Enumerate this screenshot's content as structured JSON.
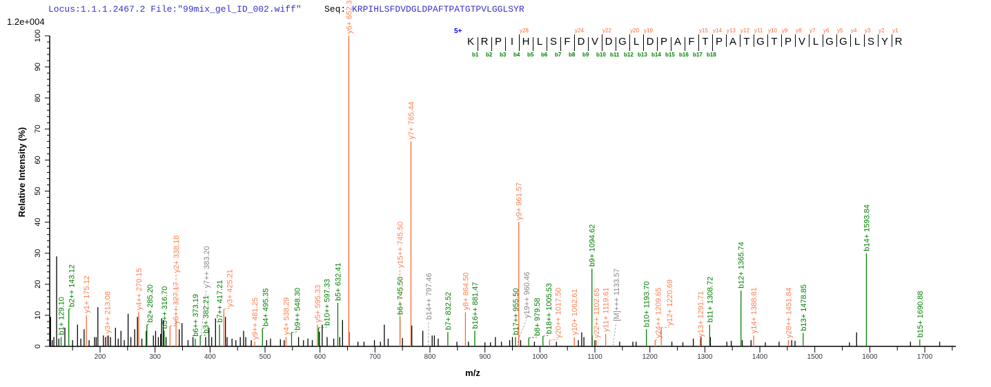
{
  "header": {
    "locus": "Locus:1.1.1.2467.2 File:\"99mix_gel_ID_002.wiff\"",
    "seq_label": "Seq:",
    "sequence": "KRPIHLSFDVDGLDPAFTPATGTPVLGGLSYR",
    "max_intensity": "1.2e+004",
    "charge": "5+"
  },
  "colors": {
    "b_ion": "#008000",
    "y_ion": "#ff6633",
    "y_label": "#ff7f50",
    "other": "#999999",
    "unassigned": "#000000",
    "header": "#3333cc"
  },
  "fragment_map": {
    "b_ions": [
      1,
      2,
      3,
      4,
      5,
      6,
      7,
      8,
      9,
      10,
      11,
      12,
      13,
      14,
      15,
      16,
      17,
      18
    ],
    "y_ions": [
      28,
      24,
      22,
      20,
      19,
      15,
      14,
      13,
      12,
      11,
      10,
      9,
      8,
      7,
      6,
      5,
      4,
      3,
      2,
      1
    ]
  },
  "chart_data": {
    "type": "bar",
    "title": "",
    "xlabel": "m/z",
    "ylabel": "Relative   Intensity (%)",
    "xlim": [
      108,
      1758
    ],
    "ylim": [
      0,
      100
    ],
    "xticks": [
      200,
      300,
      400,
      500,
      600,
      700,
      800,
      900,
      1000,
      1100,
      1200,
      1300,
      1400,
      1500,
      1600,
      1700
    ],
    "yticks": [
      0,
      10,
      20,
      30,
      40,
      50,
      60,
      70,
      80,
      90,
      100
    ],
    "grid": false,
    "annotated_peaks": [
      {
        "label": "b1+ 129.10",
        "mz": 129.1,
        "intensity": 3,
        "ion": "b"
      },
      {
        "label": "b2++ 143.12",
        "mz": 143.12,
        "intensity": 12,
        "ion": "b"
      },
      {
        "label": "y1+ 175.12",
        "mz": 175.12,
        "intensity": 10,
        "ion": "y"
      },
      {
        "label": "y3++ 213.08",
        "mz": 213.08,
        "intensity": 3.5,
        "ion": "y"
      },
      {
        "label": "y4++ 270.15",
        "mz": 270.15,
        "intensity": 11,
        "ion": "y"
      },
      {
        "label": "b2+ 285.20",
        "mz": 285.2,
        "intensity": 7,
        "ion": "b"
      },
      {
        "label": "b5++ 316.70",
        "mz": 316.7,
        "intensity": 5,
        "ion": "b"
      },
      {
        "label": "y6++ 327.17",
        "mz": 327.17,
        "intensity": 6.5,
        "ion": "y"
      },
      {
        "label": "y2+ 338.18",
        "mz": 338.18,
        "intensity": 8,
        "ion": "y"
      },
      {
        "label": "b6++ 373.19",
        "mz": 373.19,
        "intensity": 2.5,
        "ion": "b"
      },
      {
        "label": "b3+ 382.21",
        "mz": 382.21,
        "intensity": 3.5,
        "ion": "b"
      },
      {
        "label": "y7++ 383.20",
        "mz": 383.2,
        "intensity": 3,
        "ion": "o"
      },
      {
        "label": "b7++ 417.21",
        "mz": 417.21,
        "intensity": 7,
        "ion": "b"
      },
      {
        "label": "y3+ 425.21",
        "mz": 425.21,
        "intensity": 12,
        "ion": "y"
      },
      {
        "label": "y9++ 481.25",
        "mz": 481.25,
        "intensity": 1.5,
        "ion": "y"
      },
      {
        "label": "b4+ 495.35",
        "mz": 495.35,
        "intensity": 5.8,
        "ion": "b"
      },
      {
        "label": "y4+ 538.29",
        "mz": 538.29,
        "intensity": 3,
        "ion": "y"
      },
      {
        "label": "b9++ 548.30",
        "mz": 548.3,
        "intensity": 4.5,
        "ion": "b"
      },
      {
        "label": "y5+ 595.33",
        "mz": 595.33,
        "intensity": 7,
        "ion": "y"
      },
      {
        "label": "b10++ 597.33",
        "mz": 597.33,
        "intensity": 6,
        "ion": "b"
      },
      {
        "label": "b5+ 632.41",
        "mz": 632.41,
        "intensity": 14,
        "ion": "b"
      },
      {
        "label": "y6+ 652.35",
        "mz": 652.35,
        "intensity": 100,
        "ion": "y"
      },
      {
        "label": "b6+ 745.50",
        "mz": 745.5,
        "intensity": 9.5,
        "ion": "b"
      },
      {
        "label": "y15++ 745.50",
        "mz": 745.5,
        "intensity": 9.5,
        "ion": "y"
      },
      {
        "label": "y7+ 765.44",
        "mz": 765.44,
        "intensity": 66,
        "ion": "y"
      },
      {
        "label": "b14++ 797.46",
        "mz": 797.46,
        "intensity": 1.5,
        "ion": "o"
      },
      {
        "label": "b7+ 832.52",
        "mz": 832.52,
        "intensity": 4.6,
        "ion": "b"
      },
      {
        "label": "y8+ 864.50",
        "mz": 864.5,
        "intensity": 11,
        "ion": "y"
      },
      {
        "label": "b16++ 881.47",
        "mz": 881.47,
        "intensity": 5,
        "ion": "b"
      },
      {
        "label": "b17++ 955.50",
        "mz": 955.5,
        "intensity": 3,
        "ion": "b"
      },
      {
        "label": "y19++ 960.46",
        "mz": 960.46,
        "intensity": 2,
        "ion": "o"
      },
      {
        "label": "y9+ 961.57",
        "mz": 961.57,
        "intensity": 40,
        "ion": "y"
      },
      {
        "label": "b8+ 979.58",
        "mz": 979.58,
        "intensity": 2.7,
        "ion": "b"
      },
      {
        "label": "b18++ 1005.53",
        "mz": 1005.53,
        "intensity": 3.3,
        "ion": "b"
      },
      {
        "label": "y20++ 1017.50",
        "mz": 1017.5,
        "intensity": 2,
        "ion": "y"
      },
      {
        "label": "y10+ 1062.61",
        "mz": 1062.61,
        "intensity": 3,
        "ion": "y"
      },
      {
        "label": "b9+ 1094.62",
        "mz": 1094.62,
        "intensity": 25,
        "ion": "b"
      },
      {
        "label": "y22++ 1102.65",
        "mz": 1102.65,
        "intensity": 2,
        "ion": "y"
      },
      {
        "label": "y11+ 1119.61",
        "mz": 1119.61,
        "intensity": 4,
        "ion": "y"
      },
      {
        "label": "[M]+++ 1133.57",
        "mz": 1133.57,
        "intensity": 1,
        "ion": "o"
      },
      {
        "label": "b10+ 1193.70",
        "mz": 1193.7,
        "intensity": 5.5,
        "ion": "b"
      },
      {
        "label": "y24++ 1209.65",
        "mz": 1209.65,
        "intensity": 2,
        "ion": "y"
      },
      {
        "label": "y12+ 1220.69",
        "mz": 1220.69,
        "intensity": 6,
        "ion": "y"
      },
      {
        "label": "y13+ 1291.71",
        "mz": 1291.71,
        "intensity": 2.3,
        "ion": "y"
      },
      {
        "label": "b11+ 1308.72",
        "mz": 1308.72,
        "intensity": 7,
        "ion": "b"
      },
      {
        "label": "b12+ 1365.74",
        "mz": 1365.74,
        "intensity": 18,
        "ion": "b"
      },
      {
        "label": "y14+ 1388.81",
        "mz": 1388.81,
        "intensity": 3.5,
        "ion": "y"
      },
      {
        "label": "y28++ 1451.84",
        "mz": 1451.84,
        "intensity": 2,
        "ion": "y"
      },
      {
        "label": "b13+ 1478.85",
        "mz": 1478.85,
        "intensity": 4.3,
        "ion": "b"
      },
      {
        "label": "b14+ 1593.84",
        "mz": 1593.84,
        "intensity": 30,
        "ion": "b"
      },
      {
        "label": "b15+ 1690.88",
        "mz": 1690.88,
        "intensity": 2.2,
        "ion": "b"
      }
    ],
    "unassigned_peaks": [
      [
        110,
        9.5
      ],
      [
        113,
        2
      ],
      [
        116,
        3
      ],
      [
        121,
        29
      ],
      [
        125,
        2.5
      ],
      [
        136,
        6
      ],
      [
        150,
        2
      ],
      [
        159,
        7
      ],
      [
        165,
        2.5
      ],
      [
        171,
        5.5
      ],
      [
        180,
        2
      ],
      [
        190,
        3
      ],
      [
        193,
        3
      ],
      [
        196,
        12.6
      ],
      [
        206,
        3.5
      ],
      [
        210,
        3
      ],
      [
        215,
        3.5
      ],
      [
        219,
        3
      ],
      [
        228,
        6
      ],
      [
        233,
        2.5
      ],
      [
        238,
        5
      ],
      [
        244,
        2
      ],
      [
        251,
        10.5
      ],
      [
        256,
        3
      ],
      [
        263,
        5.5
      ],
      [
        268,
        9.5
      ],
      [
        276,
        2.5
      ],
      [
        284,
        5
      ],
      [
        297,
        3.5
      ],
      [
        301,
        5
      ],
      [
        306,
        3
      ],
      [
        310,
        4
      ],
      [
        312,
        9
      ],
      [
        315,
        8.5
      ],
      [
        320,
        3
      ],
      [
        344,
        5.5
      ],
      [
        349,
        7.5
      ],
      [
        360,
        2
      ],
      [
        369,
        3
      ],
      [
        392,
        3
      ],
      [
        398,
        6
      ],
      [
        403,
        3
      ],
      [
        410,
        9
      ],
      [
        428,
        9.5
      ],
      [
        431,
        3
      ],
      [
        440,
        2.5
      ],
      [
        447,
        2
      ],
      [
        455,
        3
      ],
      [
        461,
        5
      ],
      [
        465,
        3
      ],
      [
        475,
        2
      ],
      [
        503,
        2
      ],
      [
        510,
        2.5
      ],
      [
        528,
        2.3
      ],
      [
        535,
        2
      ],
      [
        561,
        3
      ],
      [
        570,
        2
      ],
      [
        578,
        2.5
      ],
      [
        586,
        2
      ],
      [
        599,
        4.7
      ],
      [
        604,
        7
      ],
      [
        613,
        3
      ],
      [
        625,
        2.5
      ],
      [
        636,
        3
      ],
      [
        641,
        8.5
      ],
      [
        653,
        4.6
      ],
      [
        669,
        1.5
      ],
      [
        680,
        1.5
      ],
      [
        699,
        2
      ],
      [
        710,
        1.5
      ],
      [
        717,
        7
      ],
      [
        724,
        2.5
      ],
      [
        750,
        2.7
      ],
      [
        767,
        6.7
      ],
      [
        787,
        5
      ],
      [
        804,
        3.5
      ],
      [
        808,
        3.5
      ],
      [
        815,
        2.5
      ],
      [
        849,
        1.5
      ],
      [
        870,
        1.5
      ],
      [
        900,
        1.3
      ],
      [
        910,
        1.3
      ],
      [
        919,
        3
      ],
      [
        930,
        1.5
      ],
      [
        945,
        2
      ],
      [
        950,
        3
      ],
      [
        965,
        2
      ],
      [
        990,
        1.5
      ],
      [
        1030,
        1.5
      ],
      [
        1070,
        2
      ],
      [
        1076,
        4.5
      ],
      [
        1080,
        3
      ],
      [
        1095,
        3.5
      ],
      [
        1100,
        2
      ],
      [
        1145,
        1.5
      ],
      [
        1169,
        1.5
      ],
      [
        1175,
        1.5
      ],
      [
        1240,
        1.5
      ],
      [
        1260,
        1.3
      ],
      [
        1279,
        2.5
      ],
      [
        1293,
        3
      ],
      [
        1310,
        3
      ],
      [
        1340,
        1.5
      ],
      [
        1348,
        1.8
      ],
      [
        1368,
        2
      ],
      [
        1384,
        2
      ],
      [
        1410,
        1.3
      ],
      [
        1435,
        1.5
      ],
      [
        1458,
        2
      ],
      [
        1464,
        1.8
      ],
      [
        1563,
        1.3
      ],
      [
        1576,
        4.5
      ],
      [
        1674,
        1.5
      ],
      [
        1727,
        1.5
      ]
    ]
  }
}
